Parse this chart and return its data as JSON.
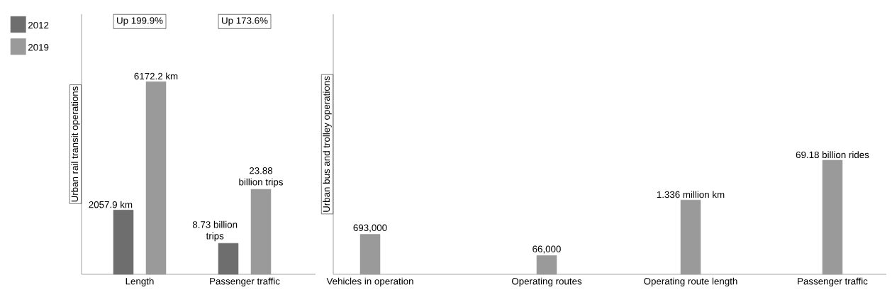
{
  "chart_data": [
    {
      "type": "bar",
      "ylabel": "Urban rail transit operations",
      "categories": [
        "Length"
      ],
      "legend": "top left",
      "series": [
        {
          "name": "2012",
          "color": "#6e6e6e",
          "values": [
            2057.9
          ],
          "value_labels": [
            "2057.9 km"
          ]
        },
        {
          "name": "2019",
          "color": "#9a9a9a",
          "values": [
            6172.2
          ],
          "value_labels": [
            "6172.2 km"
          ]
        }
      ],
      "annotations": [
        "Up 199.9%"
      ]
    },
    {
      "type": "bar",
      "categories": [
        "Passenger traffic"
      ],
      "series": [
        {
          "color": "#6e6e6e",
          "values": [
            8.73
          ],
          "value_labels": [
            "8.73 billion trips"
          ]
        },
        {
          "color": "#9a9a9a",
          "values": [
            23.88
          ],
          "value_labels": [
            "23.88 billion trips"
          ]
        }
      ],
      "annotations": [
        "Up 173.6%"
      ]
    },
    {
      "type": "bar",
      "ylabel": "Urban bus and trolley operations",
      "categories": [
        "Vehicles in operation"
      ],
      "series": [
        {
          "color": "#9a9a9a",
          "values": [
            693000
          ],
          "value_labels": [
            "693,000"
          ]
        }
      ]
    },
    {
      "type": "bar",
      "categories": [
        "Operating routes"
      ],
      "series": [
        {
          "color": "#9a9a9a",
          "values": [
            66000
          ],
          "value_labels": [
            "66,000"
          ]
        }
      ]
    },
    {
      "type": "bar",
      "categories": [
        "Operating route length"
      ],
      "series": [
        {
          "color": "#9a9a9a",
          "values": [
            1.336
          ],
          "value_labels": [
            "1.336 million km"
          ]
        }
      ]
    },
    {
      "type": "bar",
      "categories": [
        "Passenger traffic"
      ],
      "series": [
        {
          "color": "#9a9a9a",
          "values": [
            69.18
          ],
          "value_labels": [
            "69.18 billion rides"
          ]
        }
      ]
    }
  ]
}
